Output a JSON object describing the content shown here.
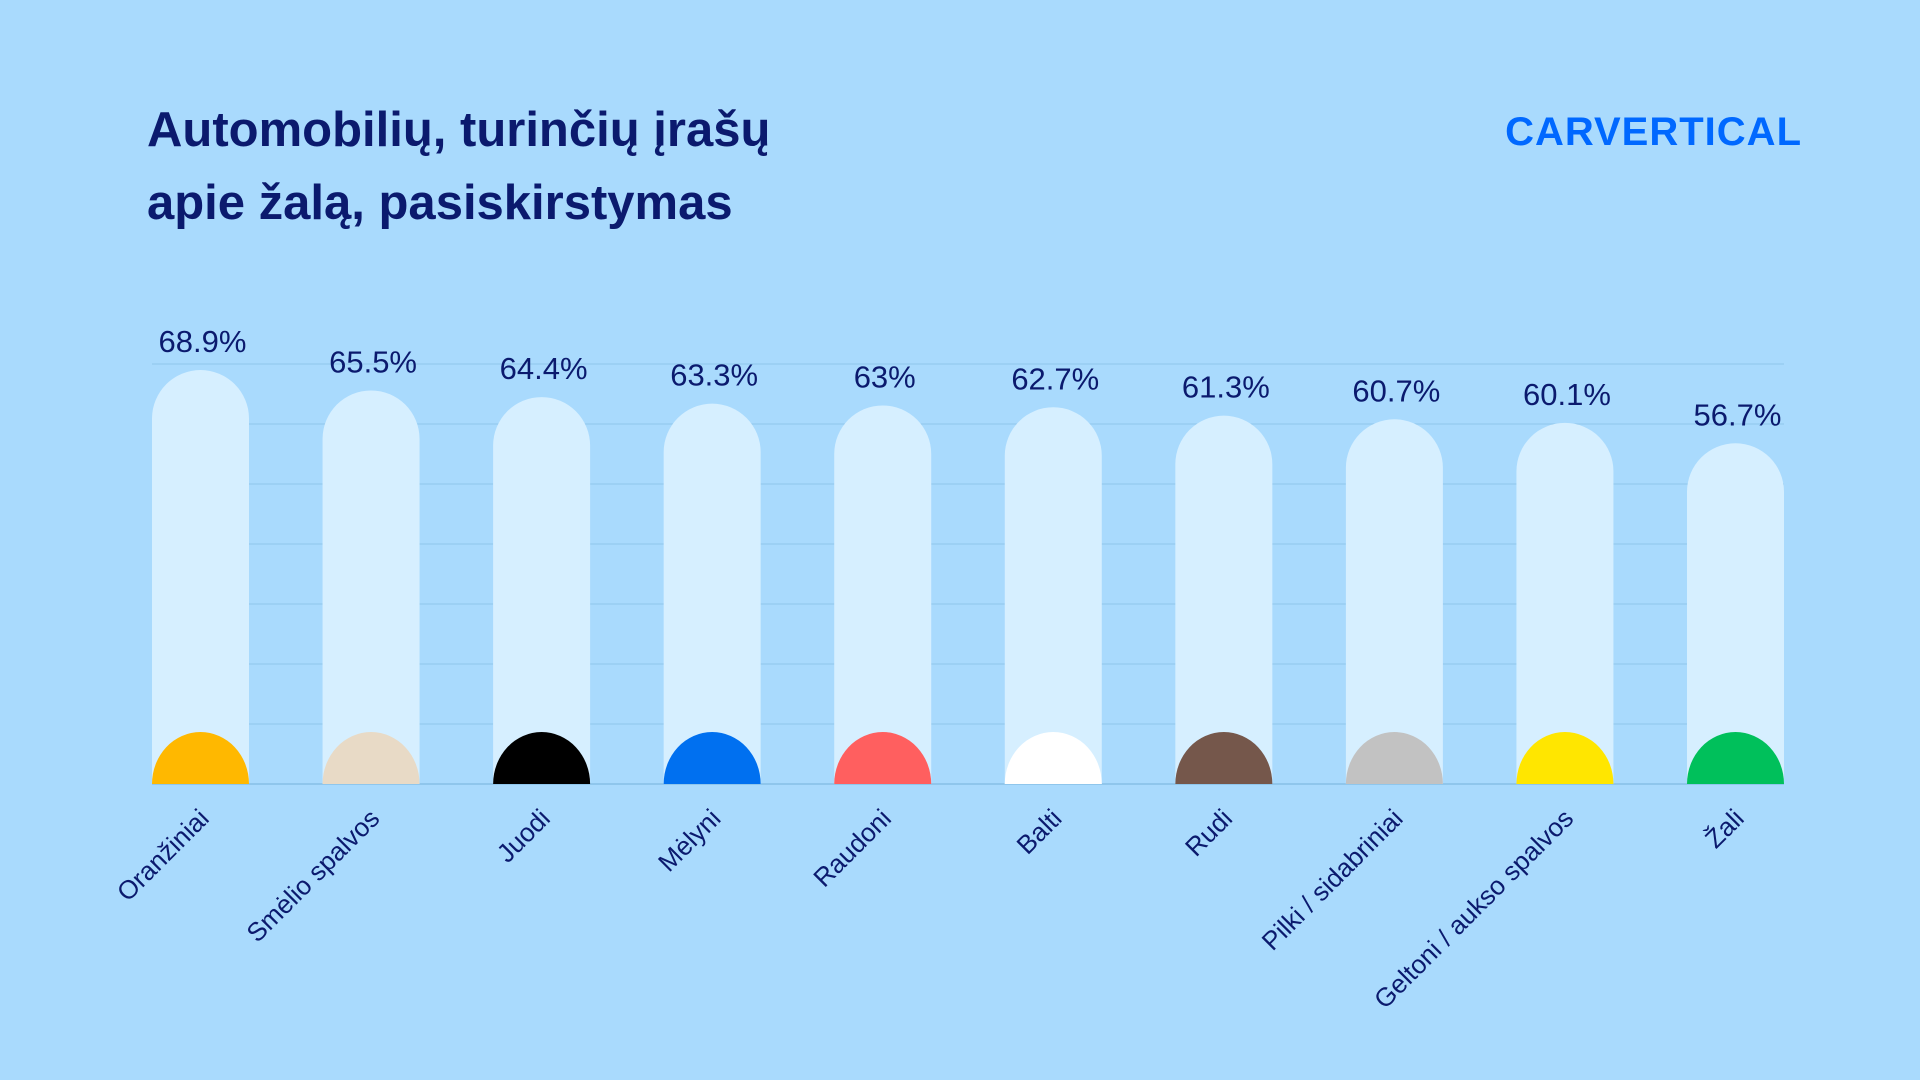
{
  "header": {
    "title_line1": "Automobilių, turinčių įrašų",
    "title_line2": "apie žalą, pasiskirstymas",
    "logo": "CARVERTICAL"
  },
  "colors": {
    "background": "#a9dafd",
    "bar_track": "#d6efff",
    "text": "#0b1a6e",
    "logo": "#0068ff",
    "grid": "#8fc6ec"
  },
  "chart_data": {
    "type": "bar",
    "title": "Automobilių, turinčių įrašų apie žalą, pasiskirstymas",
    "categories": [
      "Oranžiniai",
      "Smėlio spalvos",
      "Juodi",
      "Mėlyni",
      "Raudoni",
      "Balti",
      "Rudi",
      "Pilki / sidabriniai",
      "Geltoni / aukso spalvos",
      "Žali"
    ],
    "values": [
      68.9,
      65.5,
      64.4,
      63.3,
      63,
      62.7,
      61.3,
      60.7,
      60.1,
      56.7
    ],
    "value_labels": [
      "68.9%",
      "65.5%",
      "64.4%",
      "63.3%",
      "63%",
      "62.7%",
      "61.3%",
      "60.7%",
      "60.1%",
      "56.7%"
    ],
    "category_colors": [
      "#ffb800",
      "#e8dac6",
      "#000000",
      "#0070f0",
      "#ff5f5f",
      "#ffffff",
      "#75574b",
      "#c2c2c2",
      "#ffe600",
      "#00c05b"
    ],
    "ylim": [
      0,
      70
    ],
    "grid": true,
    "legend": "none",
    "xlabel": "",
    "ylabel": ""
  }
}
